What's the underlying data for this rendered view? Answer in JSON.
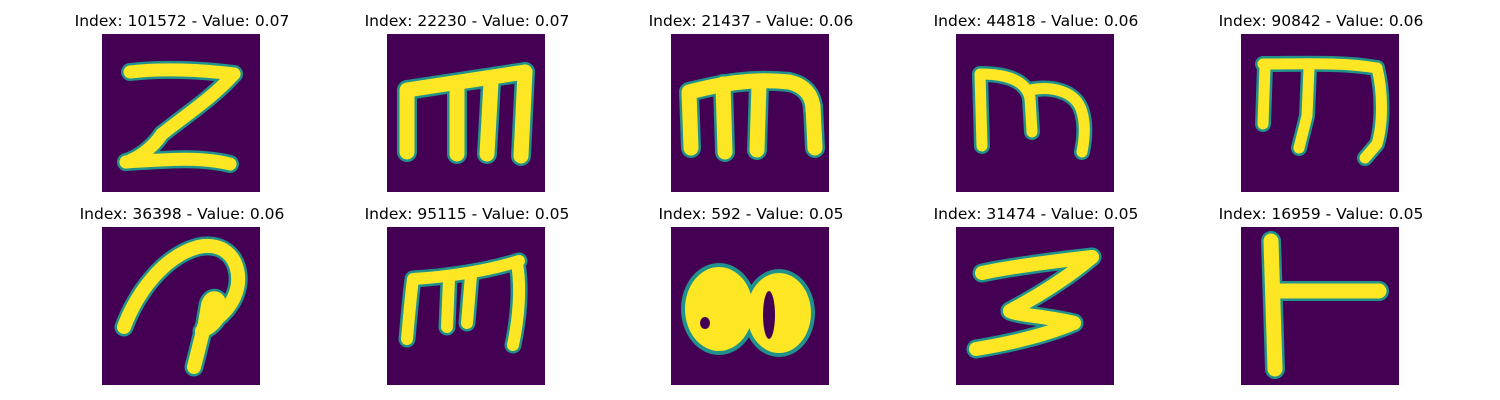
{
  "colors": {
    "background": "#440154",
    "foreground": "#fde725",
    "edge": "#21918c"
  },
  "panels": [
    {
      "title": "Index: 101572 - Value: 0.07",
      "glyph": "sigma"
    },
    {
      "title": "Index: 22230 - Value: 0.07",
      "glyph": "m-boxy"
    },
    {
      "title": "Index: 21437 - Value: 0.06",
      "glyph": "m-round"
    },
    {
      "title": "Index: 44818 - Value: 0.06",
      "glyph": "m-thin"
    },
    {
      "title": "Index: 90842 - Value: 0.06",
      "glyph": "m-italic"
    },
    {
      "title": "Index: 36398 - Value: 0.06",
      "glyph": "p-loop"
    },
    {
      "title": "Index: 95115 - Value: 0.05",
      "glyph": "m-slanted"
    },
    {
      "title": "Index: 592 - Value: 0.05",
      "glyph": "blob-80"
    },
    {
      "title": "Index: 31474 - Value: 0.05",
      "glyph": "zigzag"
    },
    {
      "title": "Index: 16959 - Value: 0.05",
      "glyph": "t-sideways"
    }
  ]
}
